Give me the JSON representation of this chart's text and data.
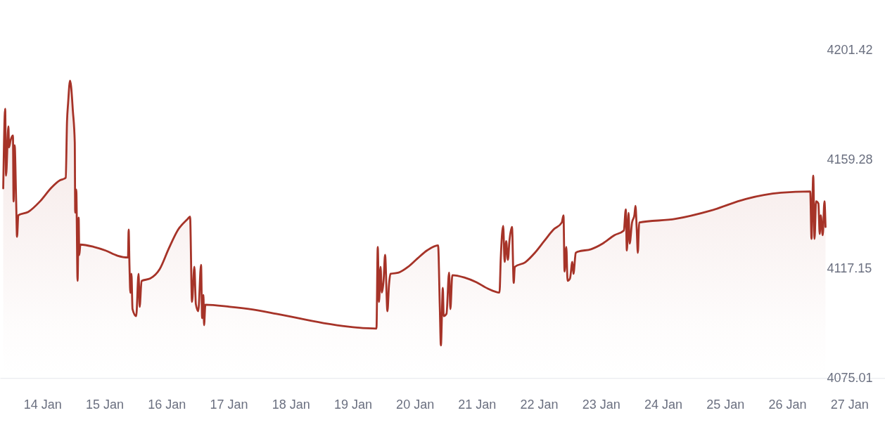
{
  "chart_data": {
    "type": "area",
    "x": [
      "--01-13T08:50",
      "--01-13T09:35",
      "--01-13T09:55",
      "--01-13T10:50",
      "--01-13T11:05",
      "--01-13T11:40",
      "--01-13T12:35",
      "--01-13T12:50",
      "--01-13T13:15",
      "--01-13T13:50",
      "--01-13T14:10",
      "--01-13T14:40",
      "--01-13T18:30",
      "--01-13T23:05",
      "--01-14T03:35",
      "--01-14T06:45",
      "--01-14T08:35",
      "--01-14T09:00",
      "--01-14T09:30",
      "--01-14T09:55",
      "--01-14T10:40",
      "--01-14T11:05",
      "--01-14T11:45",
      "--01-14T12:30",
      "--01-14T12:40",
      "--01-14T13:05",
      "--01-14T13:35",
      "--01-14T14:00",
      "--01-14T14:15",
      "--01-14T14:40",
      "--01-14T19:55",
      "--01-15T00:25",
      "--01-15T05:00",
      "--01-15T09:05",
      "--01-15T09:20",
      "--01-15T09:40",
      "--01-15T10:00",
      "--01-15T10:25",
      "--01-15T10:50",
      "--01-15T12:15",
      "--01-15T13:10",
      "--01-15T13:35",
      "--01-15T14:20",
      "--01-15T17:40",
      "--01-15T21:20",
      "--01-16T00:55",
      "--01-16T04:30",
      "--01-16T08:10",
      "--01-16T09:05",
      "--01-16T09:50",
      "--01-16T10:45",
      "--01-16T11:20",
      "--01-16T12:15",
      "--01-16T13:20",
      "--01-16T13:45",
      "--01-16T14:15",
      "--01-16T14:30",
      "--01-16T15:00",
      "--01-17T00:30",
      "--01-17T09:35",
      "--01-17T18:30",
      "--01-18T12:45",
      "--01-18T21:45",
      "--01-19T09:10",
      "--01-19T09:40",
      "--01-19T10:10",
      "--01-19T10:45",
      "--01-19T11:15",
      "--01-19T11:55",
      "--01-19T12:30",
      "--01-19T13:25",
      "--01-19T14:00",
      "--01-19T14:35",
      "--01-19T17:45",
      "--01-19T21:25",
      "--01-20T01:00",
      "--01-20T04:40",
      "--01-20T09:00",
      "--01-20T09:40",
      "--01-20T10:05",
      "--01-20T10:50",
      "--01-20T11:10",
      "--01-20T12:15",
      "--01-20T13:15",
      "--01-20T13:45",
      "--01-20T14:30",
      "--01-20T19:10",
      "--01-20T23:45",
      "--01-21T04:15",
      "--01-21T08:45",
      "--01-21T09:15",
      "--01-21T10:10",
      "--01-21T10:45",
      "--01-21T11:20",
      "--01-21T12:00",
      "--01-21T12:35",
      "--01-21T13:35",
      "--01-21T14:15",
      "--01-21T14:40",
      "--01-21T18:45",
      "--01-21T22:25",
      "--01-22T02:00",
      "--01-22T05:40",
      "--01-22T08:50",
      "--01-22T09:30",
      "--01-22T09:55",
      "--01-22T10:35",
      "--01-22T11:05",
      "--01-22T12:00",
      "--01-22T12:55",
      "--01-22T13:20",
      "--01-22T14:15",
      "--01-22T15:10",
      "--01-22T20:10",
      "--01-23T00:40",
      "--01-23T05:10",
      "--01-23T08:50",
      "--01-23T09:35",
      "--01-23T10:00",
      "--01-23T10:40",
      "--01-23T11:05",
      "--01-23T12:00",
      "--01-23T12:55",
      "--01-23T13:20",
      "--01-23T13:50",
      "--01-23T14:15",
      "--01-23T14:45",
      "--01-24T04:45",
      "--01-24T18:25",
      "--01-25T08:00",
      "--01-25T21:35",
      "--01-26T08:55",
      "--01-26T09:25",
      "--01-26T10:05",
      "--01-26T10:35",
      "--01-26T11:10",
      "--01-26T12:05",
      "--01-26T12:35",
      "--01-26T13:00",
      "--01-26T13:45",
      "--01-26T14:25",
      "--01-26T14:50"
    ],
    "series": [
      {
        "color": "#a63328",
        "values": [
          4148.2,
          4178.9,
          4153.1,
          4172.1,
          4164.0,
          4166.7,
          4168.6,
          4143.1,
          4164.8,
          4143.1,
          4129.5,
          4137.8,
          4139.1,
          4143.2,
          4148.6,
          4151.3,
          4152.0,
          4152.3,
          4174.0,
          4181.0,
          4189.7,
          4187.5,
          4178.3,
          4165.9,
          4138.8,
          4147.7,
          4112.5,
          4136.9,
          4122.5,
          4126.5,
          4125.6,
          4124.2,
          4122.2,
          4121.5,
          4132.3,
          4117.9,
          4107.9,
          4115.2,
          4101.6,
          4098.9,
          4115.2,
          4102.5,
          4112.5,
          4113.4,
          4117.0,
          4125.1,
          4132.3,
          4136.4,
          4137.3,
          4104.4,
          4117.9,
          4103.5,
          4100.8,
          4118.7,
          4098.1,
          4107.1,
          4095.4,
          4103.3,
          4102.5,
          4101.4,
          4099.8,
          4096.2,
          4094.9,
          4094.1,
          4125.6,
          4104.4,
          4117.9,
          4108.0,
          4112.5,
          4122.5,
          4100.8,
          4110.7,
          4115.2,
          4115.7,
          4117.9,
          4121.1,
          4124.2,
          4126.2,
          4102.5,
          4087.6,
          4109.8,
          4098.9,
          4099.8,
          4115.7,
          4101.6,
          4114.7,
          4113.8,
          4112.0,
          4109.5,
          4108.0,
          4121.5,
          4133.7,
          4119.8,
          4127.8,
          4120.6,
          4127.8,
          4133.3,
          4111.7,
          4117.9,
          4119.7,
          4123.3,
          4127.8,
          4132.3,
          4135.0,
          4137.8,
          4116.1,
          4125.6,
          4112.5,
          4113.4,
          4119.8,
          4115.2,
          4123.3,
          4123.8,
          4124.7,
          4126.9,
          4130.1,
          4131.9,
          4140.1,
          4124.2,
          4138.7,
          4126.9,
          4135.0,
          4137.8,
          4141.4,
          4132.3,
          4123.3,
          4135.0,
          4136.4,
          4139.6,
          4144.1,
          4146.5,
          4147.0,
          4128.7,
          4153.1,
          4128.7,
          4143.2,
          4142.3,
          4130.6,
          4137.8,
          4130.1,
          4143.2,
          4133.3
        ]
      }
    ],
    "xlim": [
      "--01-13T07:35",
      "--01-27T13:50"
    ],
    "xticks": [
      {
        "value": "--01-14",
        "label": "14 Jan"
      },
      {
        "value": "--01-15",
        "label": "15 Jan"
      },
      {
        "value": "--01-16",
        "label": "16 Jan"
      },
      {
        "value": "--01-17",
        "label": "17 Jan"
      },
      {
        "value": "--01-18",
        "label": "18 Jan"
      },
      {
        "value": "--01-19",
        "label": "19 Jan"
      },
      {
        "value": "--01-20",
        "label": "20 Jan"
      },
      {
        "value": "--01-21",
        "label": "21 Jan"
      },
      {
        "value": "--01-22",
        "label": "22 Jan"
      },
      {
        "value": "--01-23",
        "label": "23 Jan"
      },
      {
        "value": "--01-24",
        "label": "24 Jan"
      },
      {
        "value": "--01-25",
        "label": "25 Jan"
      },
      {
        "value": "--01-26",
        "label": "26 Jan"
      },
      {
        "value": "--01-27",
        "label": "27 Jan"
      }
    ],
    "ylim": [
      4075.01,
      4201.42
    ],
    "yticks": [
      4075.01,
      4117.15,
      4159.28,
      4201.42
    ]
  }
}
